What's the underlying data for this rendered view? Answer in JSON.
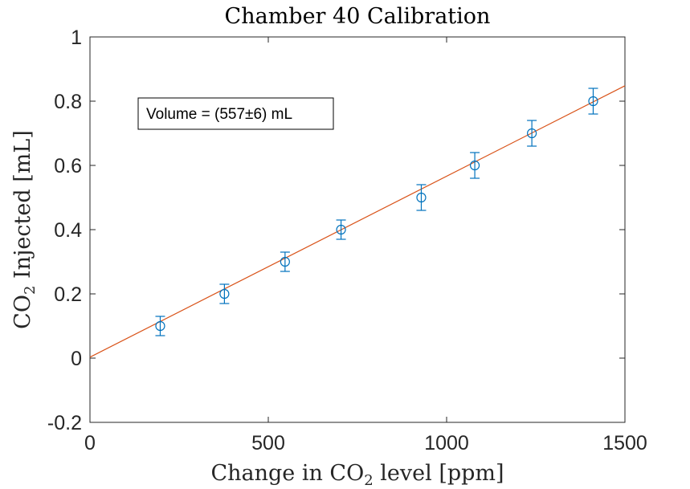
{
  "chart_data": {
    "type": "scatter",
    "title": "Chamber 40 Calibration",
    "xlabel": {
      "prefix": "Change in CO",
      "subscript": "2",
      "suffix": " level [ppm]"
    },
    "ylabel": {
      "prefix": "CO",
      "subscript": "2",
      "suffix": " Injected [mL]"
    },
    "xlim": [
      0,
      1500
    ],
    "ylim": [
      -0.2,
      1
    ],
    "xticks": [
      0,
      500,
      1000,
      1500
    ],
    "xtick_labels": [
      "0",
      "500",
      "1000",
      "1500"
    ],
    "yticks": [
      -0.2,
      0,
      0.2,
      0.4,
      0.6,
      0.8,
      1
    ],
    "ytick_labels": [
      "-0.2",
      "0",
      "0.2",
      "0.4",
      "0.6",
      "0.8",
      "1"
    ],
    "grid": false,
    "series": [
      {
        "kind": "errorbar",
        "marker": "circle",
        "color": "#0072BD",
        "x": [
          197,
          377,
          547,
          704,
          929,
          1079,
          1239,
          1411
        ],
        "y": [
          0.1,
          0.2,
          0.3,
          0.4,
          0.5,
          0.6,
          0.7,
          0.8
        ],
        "yerr": [
          0.03,
          0.03,
          0.03,
          0.03,
          0.04,
          0.04,
          0.04,
          0.04
        ]
      },
      {
        "kind": "fit",
        "color": "#D95319",
        "x": [
          0,
          1500
        ],
        "y": [
          0.003,
          0.848
        ]
      }
    ],
    "annotation": {
      "text": "Volume = (557±6) mL"
    }
  }
}
